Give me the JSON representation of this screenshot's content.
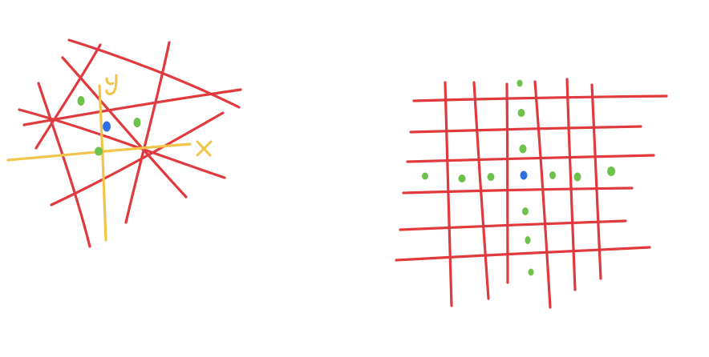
{
  "colors": {
    "lines": "#e03a3e",
    "axes": "#f2c44a",
    "neighbor_points": "#6cc24a",
    "center_point": "#2f6fe0",
    "background": "#ffffff"
  },
  "left_diagram": {
    "axis_labels": {
      "x": "x",
      "y": "y"
    },
    "line_count": 8
  },
  "right_diagram": {
    "horizontal_line_count": 7,
    "vertical_line_count": 6
  }
}
